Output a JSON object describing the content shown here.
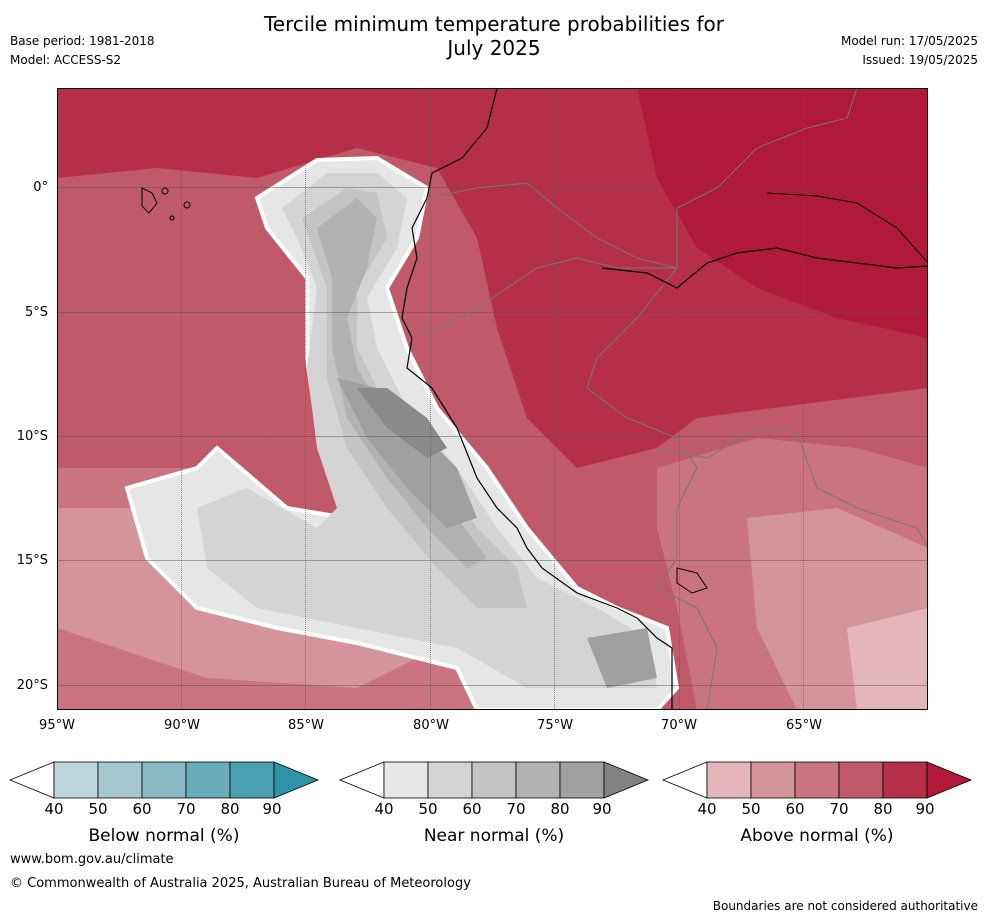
{
  "title_line1": "Tercile minimum temperature probabilities for",
  "title_line2": "July 2025",
  "base_period": "Base period: 1981-2018",
  "model": "Model: ACCESS-S2",
  "model_run": "Model run: 17/05/2025",
  "issued": "Issued: 19/05/2025",
  "map": {
    "lon_labels": [
      "95°W",
      "90°W",
      "85°W",
      "80°W",
      "75°W",
      "70°W",
      "65°W"
    ],
    "lat_labels": [
      "0°",
      "5°S",
      "10°S",
      "15°S",
      "20°S"
    ]
  },
  "colorbars": [
    {
      "name": "below",
      "label": "Below normal (%)",
      "ticks": [
        "40",
        "50",
        "60",
        "70",
        "80",
        "90"
      ],
      "colors": [
        "#ffffff",
        "#bcd6dc",
        "#a5c8d0",
        "#89b9c4",
        "#6aacb8",
        "#4aa0b0",
        "#2f93a7"
      ]
    },
    {
      "name": "near",
      "label": "Near normal (%)",
      "ticks": [
        "40",
        "50",
        "60",
        "70",
        "80",
        "90"
      ],
      "colors": [
        "#ffffff",
        "#e6e6e6",
        "#d4d4d4",
        "#c4c4c4",
        "#b2b2b2",
        "#a0a0a0",
        "#828282"
      ]
    },
    {
      "name": "above",
      "label": "Above normal (%)",
      "ticks": [
        "40",
        "50",
        "60",
        "70",
        "80",
        "90"
      ],
      "colors": [
        "#ffffff",
        "#e2b6bc",
        "#d4949c",
        "#c97480",
        "#c05a68",
        "#b53046",
        "#b01a38"
      ]
    }
  ],
  "footer": {
    "url": "www.bom.gov.au/climate",
    "copyright": "© Commonwealth of Australia 2025, Australian Bureau of Meteorology",
    "disclaimer": "Boundaries are not considered authoritative"
  }
}
